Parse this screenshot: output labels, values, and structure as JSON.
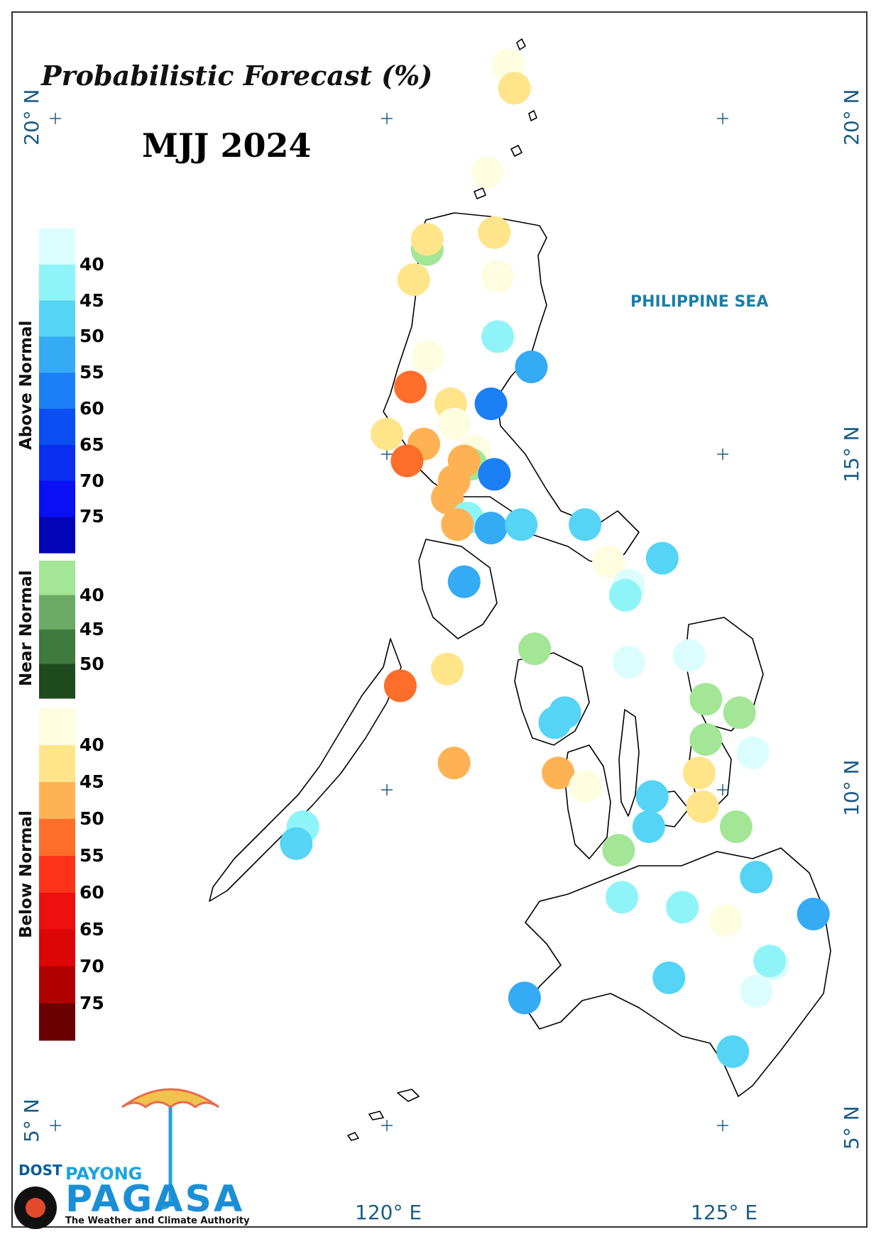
{
  "title": "Probabilistic Forecast (%)",
  "subtitle": "MJJ 2024",
  "sea_label": "PHILIPPINE SEA",
  "coord_labels": {
    "lat_20": "20° N",
    "lat_15": "15° N",
    "lat_10": "10° N",
    "lat_5": "5° N",
    "lon_120": "120° E",
    "lon_125": "125° E"
  },
  "legend": {
    "above": {
      "label": "Above Normal",
      "ticks": [
        "40",
        "45",
        "50",
        "55",
        "60",
        "65",
        "70",
        "75"
      ],
      "colors": [
        "#dcfdfe",
        "#8ff4f8",
        "#55d4f5",
        "#35aaf5",
        "#1b7ff5",
        "#0b4ff2",
        "#0a2ff0",
        "#0a0ff5",
        "#0505b8"
      ]
    },
    "near": {
      "label": "Near Normal",
      "ticks": [
        "40",
        "45",
        "50"
      ],
      "colors": [
        "#a2e696",
        "#6aaa65",
        "#3f7a3e",
        "#1f4b1f"
      ]
    },
    "below": {
      "label": "Below Normal",
      "ticks": [
        "40",
        "45",
        "50",
        "55",
        "60",
        "65",
        "70",
        "75"
      ],
      "colors": [
        "#fefde0",
        "#fee58a",
        "#feb253",
        "#fd6e2a",
        "#fc3318",
        "#ee0f0f",
        "#dc0606",
        "#b00000",
        "#6a0000"
      ]
    }
  },
  "stations": [
    {
      "lon": 121.8,
      "lat": 20.8,
      "cat": "below",
      "pct": 38
    },
    {
      "lon": 121.9,
      "lat": 20.45,
      "cat": "below",
      "pct": 43
    },
    {
      "lon": 121.5,
      "lat": 19.2,
      "cat": "below",
      "pct": 38
    },
    {
      "lon": 121.6,
      "lat": 18.3,
      "cat": "below",
      "pct": 43
    },
    {
      "lon": 120.6,
      "lat": 18.05,
      "cat": "near",
      "pct": 38
    },
    {
      "lon": 120.6,
      "lat": 18.2,
      "cat": "below",
      "pct": 43
    },
    {
      "lon": 120.4,
      "lat": 17.6,
      "cat": "below",
      "pct": 43
    },
    {
      "lon": 121.65,
      "lat": 17.65,
      "cat": "below",
      "pct": 38
    },
    {
      "lon": 121.65,
      "lat": 16.75,
      "cat": "above",
      "pct": 43
    },
    {
      "lon": 122.15,
      "lat": 16.3,
      "cat": "above",
      "pct": 53
    },
    {
      "lon": 120.6,
      "lat": 16.45,
      "cat": "below",
      "pct": 38
    },
    {
      "lon": 120.35,
      "lat": 16.0,
      "cat": "below",
      "pct": 53
    },
    {
      "lon": 120.95,
      "lat": 15.75,
      "cat": "below",
      "pct": 43
    },
    {
      "lon": 121.55,
      "lat": 15.75,
      "cat": "above",
      "pct": 58
    },
    {
      "lon": 121.0,
      "lat": 15.45,
      "cat": "below",
      "pct": 38
    },
    {
      "lon": 120.0,
      "lat": 15.3,
      "cat": "below",
      "pct": 43
    },
    {
      "lon": 120.55,
      "lat": 15.15,
      "cat": "below",
      "pct": 48
    },
    {
      "lon": 121.3,
      "lat": 15.05,
      "cat": "below",
      "pct": 38
    },
    {
      "lon": 121.25,
      "lat": 14.85,
      "cat": "near",
      "pct": 38
    },
    {
      "lon": 121.15,
      "lat": 14.9,
      "cat": "below",
      "pct": 48
    },
    {
      "lon": 120.3,
      "lat": 14.9,
      "cat": "below",
      "pct": 53
    },
    {
      "lon": 121.6,
      "lat": 14.7,
      "cat": "above",
      "pct": 58
    },
    {
      "lon": 121.0,
      "lat": 14.6,
      "cat": "below",
      "pct": 48
    },
    {
      "lon": 120.9,
      "lat": 14.35,
      "cat": "below",
      "pct": 48
    },
    {
      "lon": 121.2,
      "lat": 14.05,
      "cat": "above",
      "pct": 43
    },
    {
      "lon": 121.55,
      "lat": 13.9,
      "cat": "above",
      "pct": 53
    },
    {
      "lon": 122.0,
      "lat": 13.95,
      "cat": "above",
      "pct": 48
    },
    {
      "lon": 121.05,
      "lat": 13.95,
      "cat": "below",
      "pct": 48
    },
    {
      "lon": 122.95,
      "lat": 13.95,
      "cat": "above",
      "pct": 48
    },
    {
      "lon": 123.3,
      "lat": 13.4,
      "cat": "below",
      "pct": 38
    },
    {
      "lon": 124.1,
      "lat": 13.45,
      "cat": "above",
      "pct": 48
    },
    {
      "lon": 121.15,
      "lat": 13.1,
      "cat": "above",
      "pct": 53
    },
    {
      "lon": 123.6,
      "lat": 13.05,
      "cat": "above",
      "pct": 38
    },
    {
      "lon": 123.55,
      "lat": 12.9,
      "cat": "above",
      "pct": 43
    },
    {
      "lon": 122.2,
      "lat": 12.1,
      "cat": "near",
      "pct": 38
    },
    {
      "lon": 123.6,
      "lat": 11.9,
      "cat": "above",
      "pct": 38
    },
    {
      "lon": 124.5,
      "lat": 12.0,
      "cat": "above",
      "pct": 38
    },
    {
      "lon": 120.9,
      "lat": 11.8,
      "cat": "below",
      "pct": 43
    },
    {
      "lon": 120.2,
      "lat": 11.55,
      "cat": "below",
      "pct": 53
    },
    {
      "lon": 124.75,
      "lat": 11.35,
      "cat": "near",
      "pct": 38
    },
    {
      "lon": 125.25,
      "lat": 11.15,
      "cat": "near",
      "pct": 38
    },
    {
      "lon": 122.65,
      "lat": 11.15,
      "cat": "above",
      "pct": 48
    },
    {
      "lon": 122.5,
      "lat": 11.0,
      "cat": "above",
      "pct": 48
    },
    {
      "lon": 124.75,
      "lat": 10.75,
      "cat": "near",
      "pct": 38
    },
    {
      "lon": 125.45,
      "lat": 10.55,
      "cat": "above",
      "pct": 38
    },
    {
      "lon": 121.0,
      "lat": 10.4,
      "cat": "below",
      "pct": 48
    },
    {
      "lon": 122.55,
      "lat": 10.25,
      "cat": "below",
      "pct": 48
    },
    {
      "lon": 124.65,
      "lat": 10.25,
      "cat": "below",
      "pct": 43
    },
    {
      "lon": 122.95,
      "lat": 10.05,
      "cat": "below",
      "pct": 38
    },
    {
      "lon": 123.95,
      "lat": 9.9,
      "cat": "above",
      "pct": 48
    },
    {
      "lon": 124.7,
      "lat": 9.75,
      "cat": "below",
      "pct": 43
    },
    {
      "lon": 125.2,
      "lat": 9.45,
      "cat": "near",
      "pct": 38
    },
    {
      "lon": 118.75,
      "lat": 9.45,
      "cat": "above",
      "pct": 43
    },
    {
      "lon": 118.65,
      "lat": 9.2,
      "cat": "above",
      "pct": 48
    },
    {
      "lon": 123.9,
      "lat": 9.45,
      "cat": "above",
      "pct": 48
    },
    {
      "lon": 123.45,
      "lat": 9.1,
      "cat": "near",
      "pct": 38
    },
    {
      "lon": 125.5,
      "lat": 8.7,
      "cat": "above",
      "pct": 48
    },
    {
      "lon": 123.5,
      "lat": 8.4,
      "cat": "above",
      "pct": 43
    },
    {
      "lon": 124.4,
      "lat": 8.25,
      "cat": "above",
      "pct": 43
    },
    {
      "lon": 125.05,
      "lat": 8.05,
      "cat": "below",
      "pct": 38
    },
    {
      "lon": 126.35,
      "lat": 8.15,
      "cat": "above",
      "pct": 53
    },
    {
      "lon": 125.75,
      "lat": 7.4,
      "cat": "above",
      "pct": 38
    },
    {
      "lon": 125.7,
      "lat": 7.45,
      "cat": "above",
      "pct": 43
    },
    {
      "lon": 124.2,
      "lat": 7.2,
      "cat": "above",
      "pct": 48
    },
    {
      "lon": 122.05,
      "lat": 6.9,
      "cat": "above",
      "pct": 53
    },
    {
      "lon": 125.5,
      "lat": 7.0,
      "cat": "above",
      "pct": 38
    },
    {
      "lon": 125.15,
      "lat": 6.1,
      "cat": "above",
      "pct": 48
    }
  ]
}
